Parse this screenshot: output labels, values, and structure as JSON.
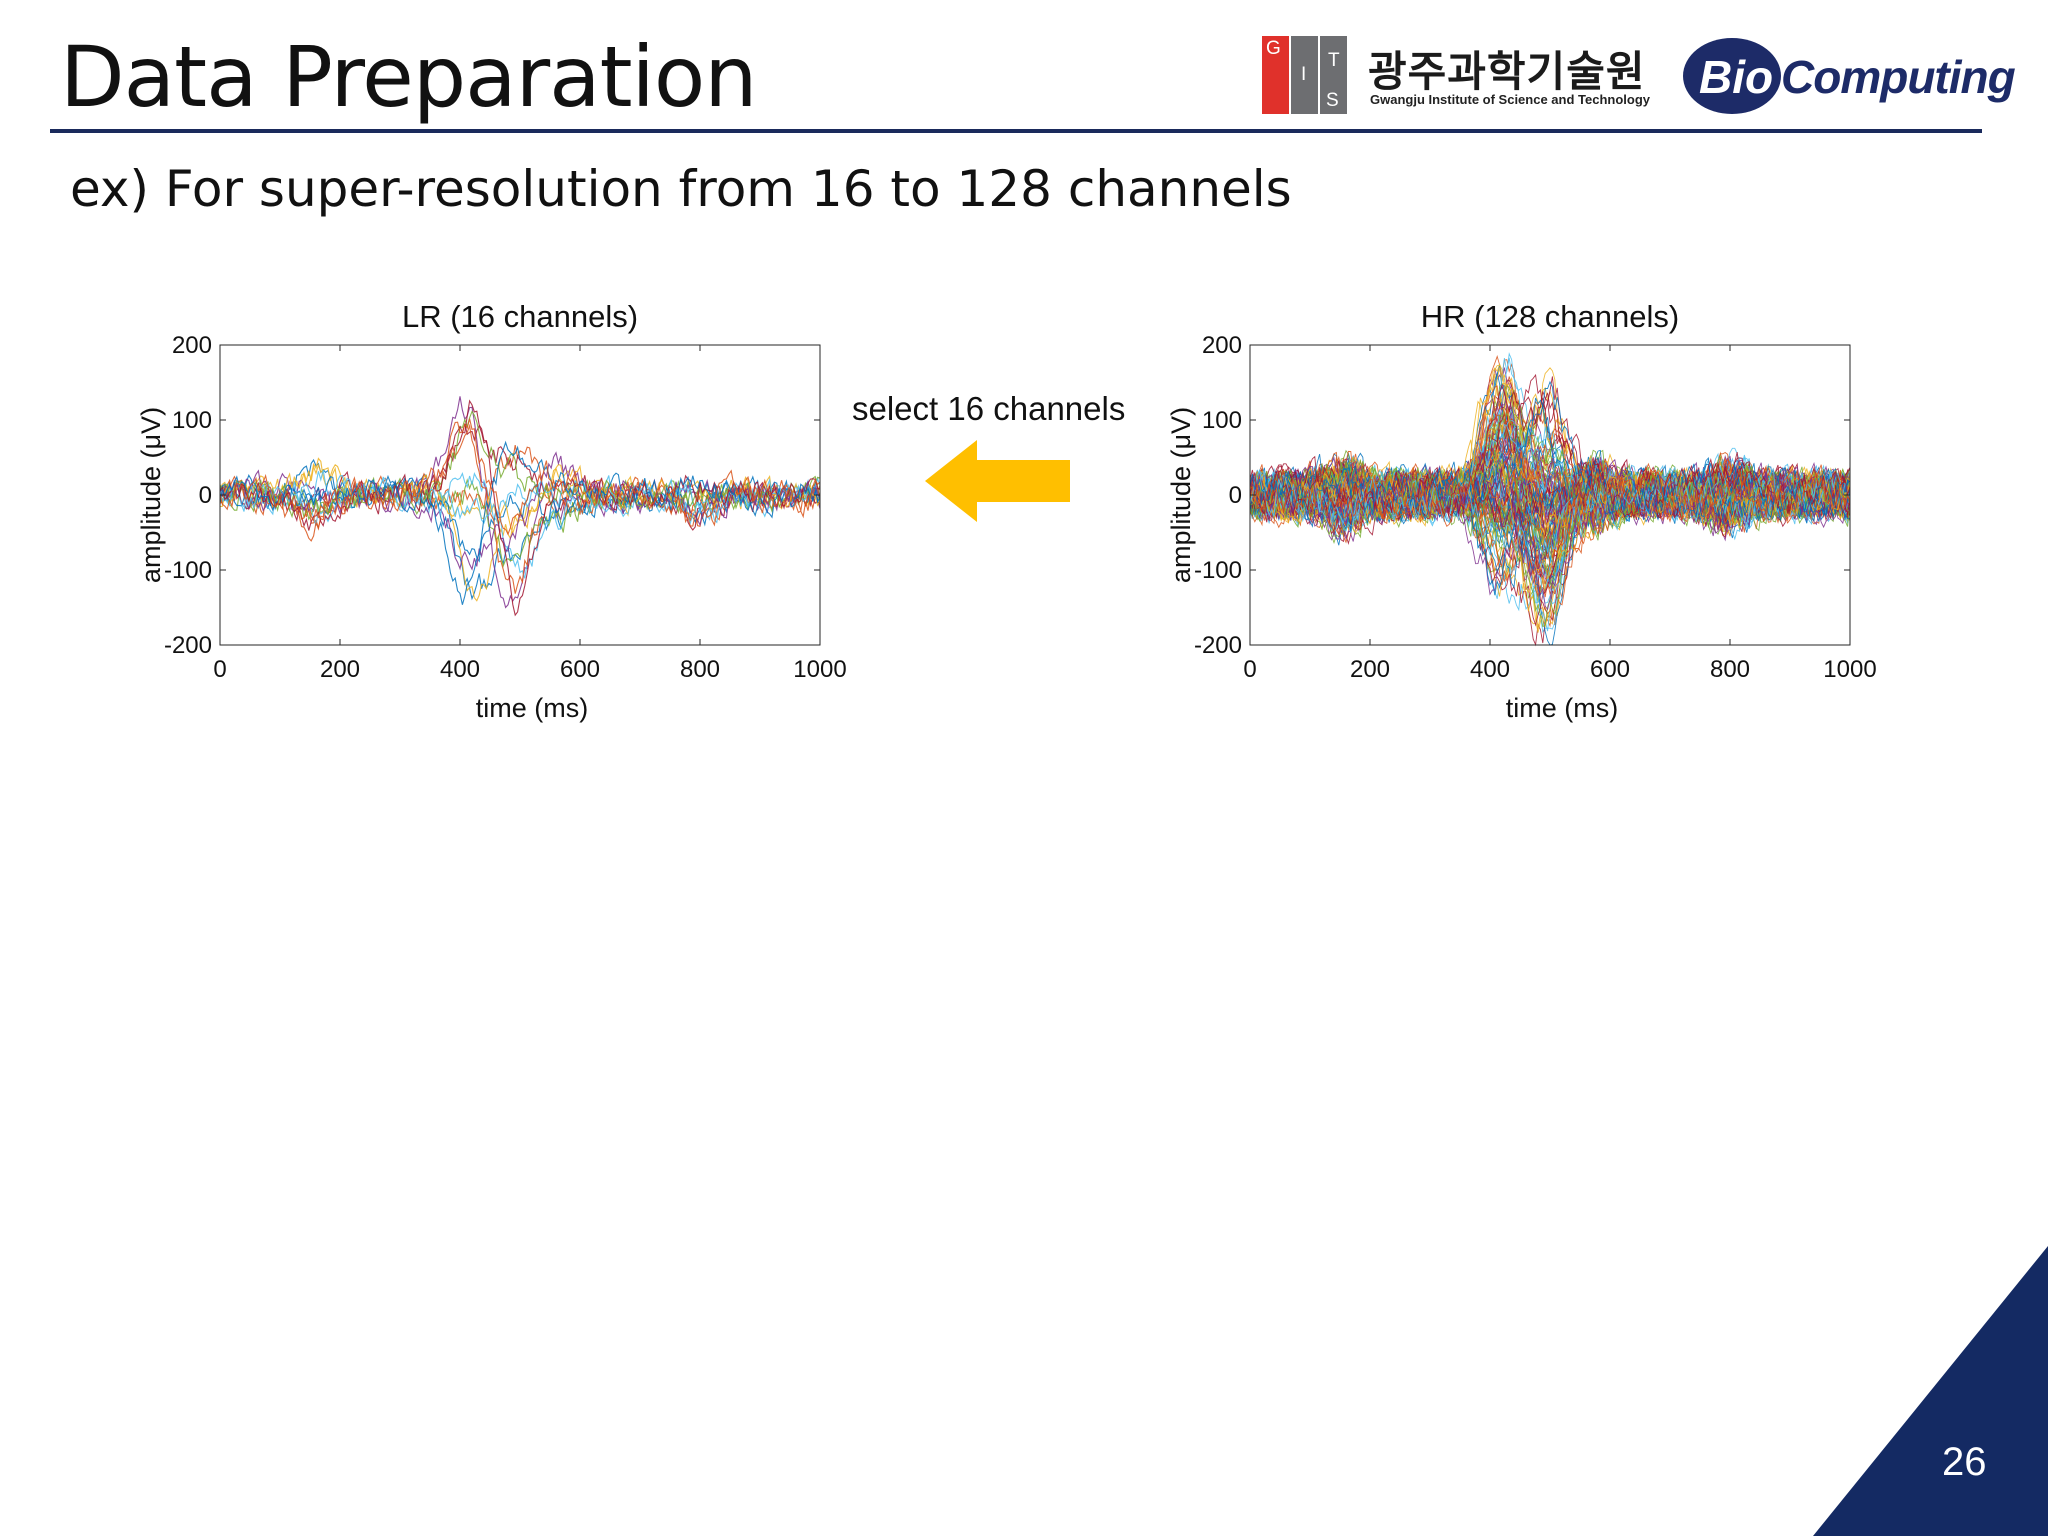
{
  "slide": {
    "title": "Data Preparation",
    "subtitle": "ex) For super-resolution from 16 to 128 channels",
    "page_number": "26",
    "accent_color": "#1a2a5c"
  },
  "logos": {
    "gist": {
      "letters": [
        "G",
        "I",
        "S",
        "T"
      ],
      "korean_name": "광주과학기술원",
      "english_name": "Gwangju Institute of Science and Technology",
      "red": "#e0312b",
      "gray": "#6d6e71"
    },
    "biocomputing": {
      "prefix": "Bio",
      "suffix": "Computing",
      "color": "#1d2b68"
    }
  },
  "arrow": {
    "label": "select 16 channels",
    "color": "#ffbf00",
    "direction": "left"
  },
  "chart_data": [
    {
      "type": "line",
      "title": "LR (16 channels)",
      "xlabel": "time (ms)",
      "ylabel": "amplitude (μV)",
      "xlim": [
        0,
        1000
      ],
      "ylim": [
        -200,
        200
      ],
      "xticks": [
        "0",
        "200",
        "400",
        "600",
        "800",
        "1000"
      ],
      "yticks": [
        "200",
        "100",
        "0",
        "-100",
        "-200"
      ],
      "grid": false,
      "n_series": 16,
      "peaks": [
        {
          "time": 150,
          "amplitude": 70
        },
        {
          "time": 420,
          "amplitude": 155
        },
        {
          "time": 490,
          "amplitude": -150
        },
        {
          "time": 560,
          "amplitude": 75
        },
        {
          "time": 800,
          "amplitude": 70
        }
      ]
    },
    {
      "type": "line",
      "title": "HR (128 channels)",
      "xlabel": "time (ms)",
      "ylabel": "amplitude (μV)",
      "xlim": [
        0,
        1000
      ],
      "ylim": [
        -200,
        200
      ],
      "xticks": [
        "0",
        "200",
        "400",
        "600",
        "800",
        "1000"
      ],
      "yticks": [
        "200",
        "100",
        "0",
        "-100",
        "-200"
      ],
      "grid": false,
      "n_series": 128,
      "peaks": [
        {
          "time": 420,
          "amplitude": 190
        },
        {
          "time": 490,
          "amplitude": -195
        }
      ]
    }
  ]
}
